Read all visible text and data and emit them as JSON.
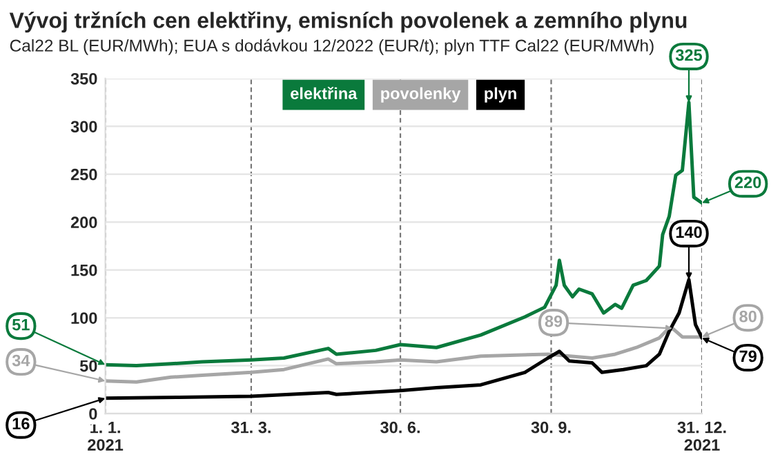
{
  "chart_data": {
    "type": "line",
    "title": "Vývoj tržních cen elektřiny, emisních povolenek a zemního plynu",
    "subtitle": "Cal22 BL (EUR/MWh); EUA s dodávkou 12/2022 (EUR/t); plyn TTF Cal22 (EUR/MWh)",
    "series": [
      {
        "name": "elektřina",
        "color": "#0a7a3c",
        "x": [
          "2021-01-01",
          "2021-01-20",
          "2021-02-10",
          "2021-03-01",
          "2021-03-31",
          "2021-04-20",
          "2021-05-17",
          "2021-05-22",
          "2021-06-15",
          "2021-06-30",
          "2021-07-22",
          "2021-08-18",
          "2021-09-14",
          "2021-09-26",
          "2021-10-03",
          "2021-10-05",
          "2021-10-08",
          "2021-10-13",
          "2021-10-17",
          "2021-10-25",
          "2021-11-01",
          "2021-11-08",
          "2021-11-12",
          "2021-11-19",
          "2021-11-27",
          "2021-12-05",
          "2021-12-07",
          "2021-12-11",
          "2021-12-15",
          "2021-12-19",
          "2021-12-23",
          "2021-12-26",
          "2021-12-31"
        ],
        "values": [
          51,
          50,
          52,
          54,
          56,
          58,
          68,
          62,
          66,
          72,
          69,
          82,
          101,
          111,
          134,
          160,
          134,
          122,
          130,
          125,
          105,
          114,
          110,
          134,
          139,
          154,
          187,
          206,
          249,
          254,
          325,
          226,
          220
        ]
      },
      {
        "name": "povolenky",
        "color": "#a6a6a6",
        "x": [
          "2021-01-01",
          "2021-01-20",
          "2021-02-10",
          "2021-03-01",
          "2021-03-31",
          "2021-04-20",
          "2021-05-17",
          "2021-05-22",
          "2021-06-15",
          "2021-06-30",
          "2021-07-22",
          "2021-08-18",
          "2021-09-28",
          "2021-10-25",
          "2021-11-08",
          "2021-11-21",
          "2021-12-05",
          "2021-12-09",
          "2021-12-13",
          "2021-12-19",
          "2021-12-31"
        ],
        "values": [
          34,
          33,
          38,
          40,
          43,
          46,
          57,
          52,
          54,
          56,
          54,
          60,
          62,
          58,
          62,
          69,
          79,
          86,
          89,
          80,
          80
        ]
      },
      {
        "name": "plyn",
        "color": "#000000",
        "x": [
          "2021-01-01",
          "2021-02-15",
          "2021-03-31",
          "2021-05-17",
          "2021-05-22",
          "2021-06-30",
          "2021-07-22",
          "2021-08-18",
          "2021-09-14",
          "2021-09-28",
          "2021-10-05",
          "2021-10-11",
          "2021-10-25",
          "2021-10-31",
          "2021-11-13",
          "2021-11-27",
          "2021-12-05",
          "2021-12-11",
          "2021-12-17",
          "2021-12-23",
          "2021-12-27",
          "2021-12-31"
        ],
        "values": [
          16,
          17,
          18,
          22,
          20,
          24,
          27,
          30,
          43,
          58,
          65,
          55,
          53,
          43,
          46,
          50,
          62,
          86,
          105,
          140,
          93,
          79
        ]
      }
    ],
    "xlim": [
      "2021-01-01",
      "2021-12-31"
    ],
    "xticks": [
      {
        "value": "2021-01-01",
        "label": "1. 1.\n2021"
      },
      {
        "value": "2021-03-31",
        "label": "31. 3."
      },
      {
        "value": "2021-06-30",
        "label": "30. 6."
      },
      {
        "value": "2021-09-30",
        "label": "30. 9."
      },
      {
        "value": "2021-12-31",
        "label": "31. 12.\n2021"
      }
    ],
    "ylim": [
      0,
      350
    ],
    "yticks": [
      0,
      50,
      100,
      150,
      200,
      250,
      300,
      350
    ],
    "grid": true,
    "legend": "top",
    "annotations": [
      {
        "text": "51",
        "x": "2021-01-01",
        "y": 51
      },
      {
        "text": "34",
        "x": "2021-01-01",
        "y": 34
      },
      {
        "text": "16",
        "x": "2021-01-01",
        "y": 16
      },
      {
        "text": "325",
        "x": "2021-12-23",
        "y": 325
      },
      {
        "text": "220",
        "x": "2021-12-31",
        "y": 220
      },
      {
        "text": "140",
        "x": "2021-12-23",
        "y": 140
      },
      {
        "text": "89",
        "x": "2021-12-13",
        "y": 89
      },
      {
        "text": "80",
        "x": "2021-12-31",
        "y": 80
      },
      {
        "text": "79",
        "x": "2021-12-31",
        "y": 79
      }
    ]
  }
}
